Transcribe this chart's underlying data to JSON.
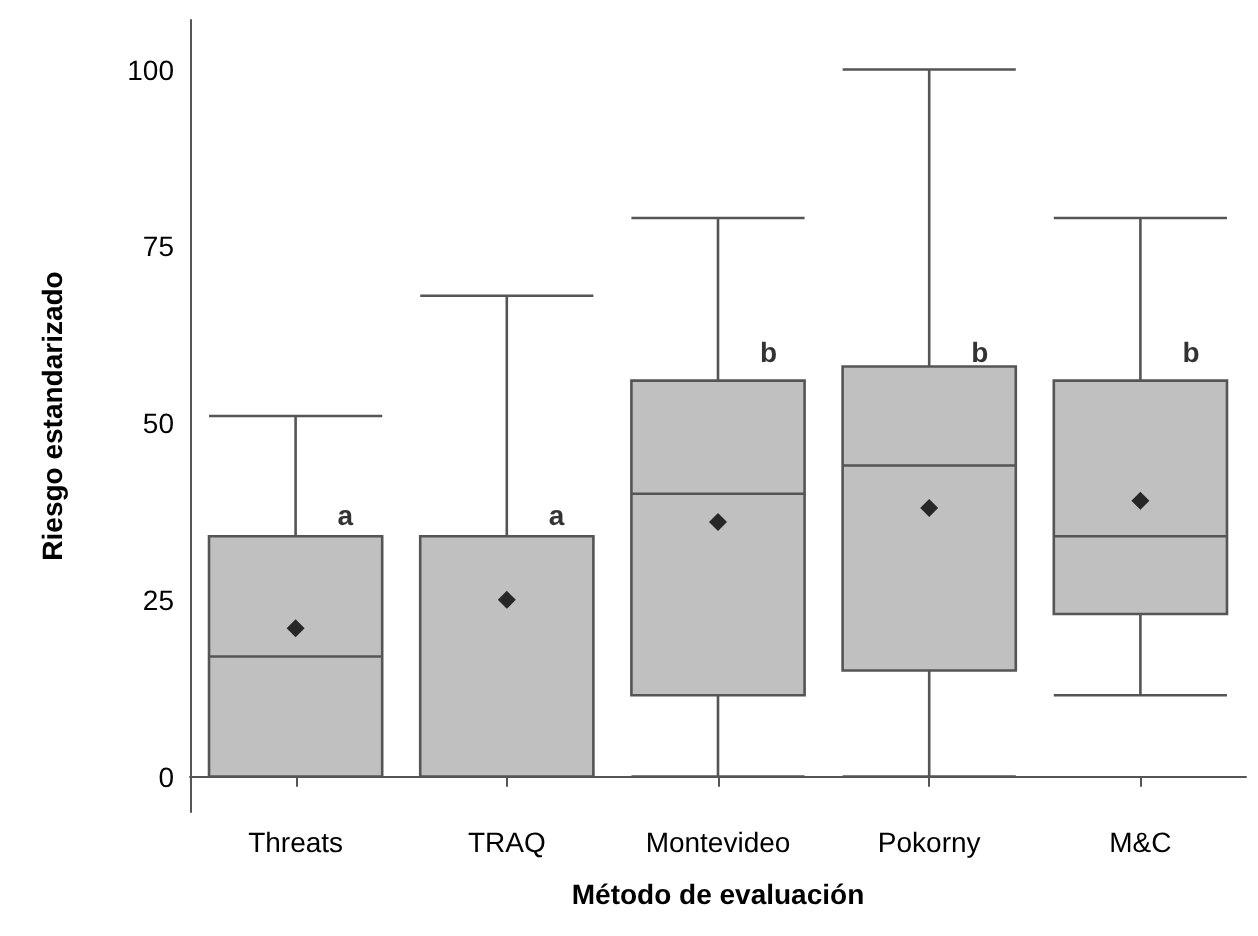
{
  "chart_data": {
    "type": "box",
    "xlabel": "Método de evaluación",
    "ylabel": "Riesgo estandarizado",
    "categories": [
      "Threats",
      "TRAQ",
      "Montevideo",
      "Pokorny",
      "M&C"
    ],
    "color": "#c0c0c0",
    "boxes": [
      {
        "low": 0,
        "q1": 0,
        "median": 17,
        "q3": 34,
        "high": 51,
        "mean": 21
      },
      {
        "low": 0,
        "q1": 0,
        "median": 34,
        "q3": 34,
        "high": 68,
        "mean": 25
      },
      {
        "low": 0,
        "q1": 11.5,
        "median": 40,
        "q3": 56,
        "high": 79,
        "mean": 36
      },
      {
        "low": 0,
        "q1": 15,
        "median": 44,
        "q3": 58,
        "high": 100,
        "mean": 38
      },
      {
        "low": 11.5,
        "q1": 23,
        "median": 34,
        "q3": 56,
        "high": 79,
        "mean": 39
      }
    ],
    "ylim": [
      -5,
      107
    ],
    "yticks": [
      0,
      25,
      50,
      75,
      100
    ],
    "grid": false,
    "marker": "diamond",
    "annotations": [
      {
        "text": "a",
        "x": "Threats",
        "y": 37
      },
      {
        "text": "a",
        "x": "TRAQ",
        "y": 37
      },
      {
        "text": "b",
        "x": "Montevideo",
        "y": 60
      },
      {
        "text": "b",
        "x": "Pokorny",
        "y": 60
      },
      {
        "text": "b",
        "x": "M&C",
        "y": 60
      }
    ]
  }
}
